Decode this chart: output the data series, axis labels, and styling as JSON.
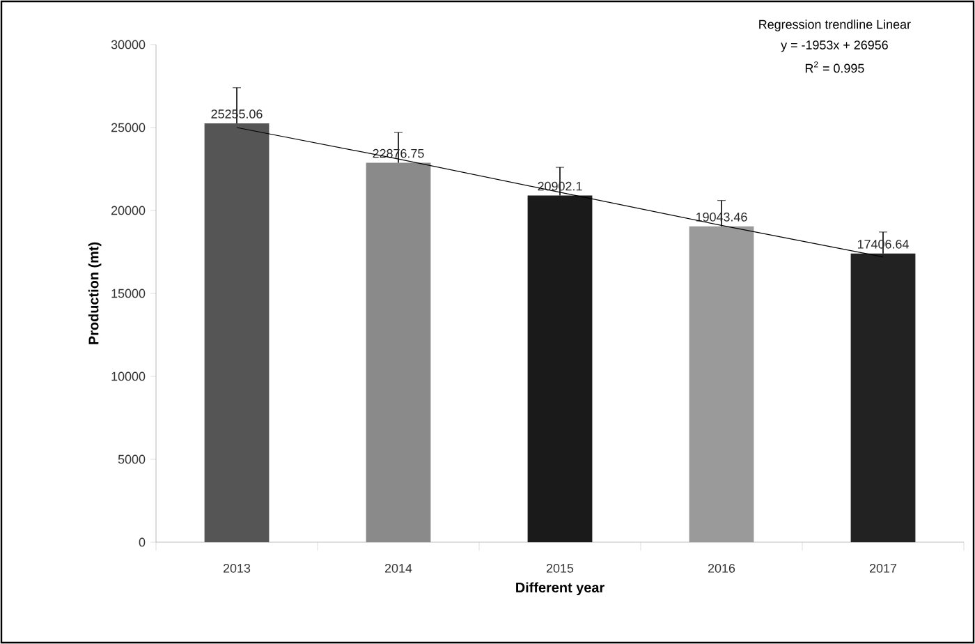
{
  "chart_data": {
    "type": "bar",
    "xlabel": "Different year",
    "ylabel": "Production (mt)",
    "categories": [
      "2013",
      "2014",
      "2015",
      "2016",
      "2017"
    ],
    "series": [
      {
        "colors": [
          "#555555",
          "#8a8a8a",
          "#1a1a1a",
          "#9a9a9a",
          "#222222"
        ],
        "values": [
          25255.06,
          22876.75,
          20902.1,
          19043.46,
          17406.64
        ],
        "value_labels": [
          "25255.06",
          "22876.75",
          "20902.1",
          "19043.46",
          "17406.64"
        ],
        "errors": [
          [
            25255.06,
            27400
          ],
          [
            22876.75,
            24700
          ],
          [
            20902.1,
            22600
          ],
          [
            19043.46,
            20600
          ],
          [
            17406.64,
            18700
          ]
        ]
      },
      {
        "type": "line",
        "color": "#000000",
        "values": [
          25000,
          23100,
          21100,
          19100,
          17200
        ]
      }
    ],
    "ylim": [
      0,
      30000
    ],
    "yticks": [
      0,
      5000,
      10000,
      15000,
      20000,
      25000,
      30000
    ],
    "annotations": [
      "Regression trendline Linear",
      "y = -1953x + 26956",
      "R$^{2}$ = 0.995"
    ]
  }
}
